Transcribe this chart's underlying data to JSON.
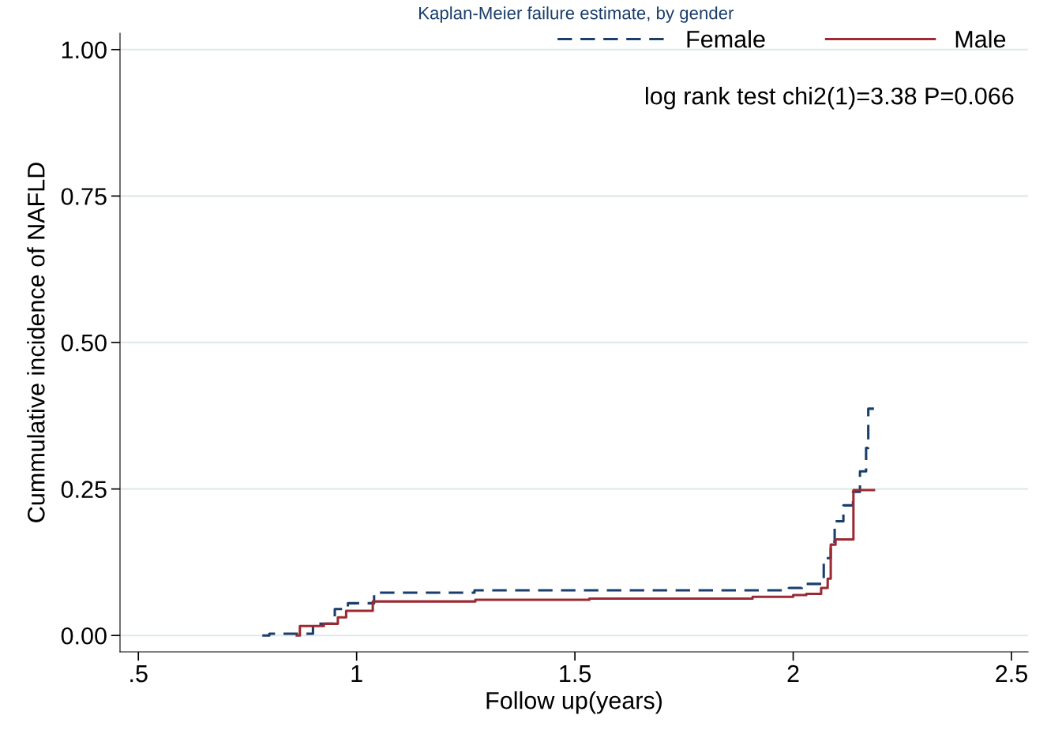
{
  "chart_data": {
    "type": "step",
    "title": "Kaplan-Meier failure estimate, by gender",
    "xlabel": "Follow up(years)",
    "ylabel": "Cummulative incidence of NAFLD",
    "annotations": [
      "log rank test chi2(1)=3.38 P=0.066"
    ],
    "series": [
      {
        "name": "Female",
        "color": "#1a3e6b",
        "line_style": "dashed",
        "x": [
          0.784,
          0.8,
          0.9,
          0.95,
          0.98,
          1.04,
          1.27,
          1.99,
          2.02,
          2.065,
          2.07,
          2.086,
          2.095,
          2.115,
          2.137,
          2.153,
          2.167,
          2.172,
          2.185
        ],
        "values": [
          0.0,
          0.003,
          0.02,
          0.045,
          0.055,
          0.073,
          0.077,
          0.081,
          0.088,
          0.097,
          0.132,
          0.16,
          0.195,
          0.222,
          0.245,
          0.28,
          0.32,
          0.387,
          0.387
        ]
      },
      {
        "name": "Male",
        "color": "#9b2a33",
        "line_style": "solid",
        "x": [
          0.863,
          0.87,
          0.925,
          0.957,
          0.976,
          1.037,
          1.272,
          1.533,
          1.907,
          2.0,
          2.03,
          2.064,
          2.079,
          2.086,
          2.097,
          2.138,
          2.185
        ],
        "values": [
          0.0,
          0.016,
          0.02,
          0.031,
          0.042,
          0.058,
          0.061,
          0.063,
          0.066,
          0.069,
          0.071,
          0.081,
          0.097,
          0.155,
          0.164,
          0.248,
          0.248
        ]
      }
    ],
    "xlim": [
      0.458,
      2.538
    ],
    "xticks": [
      {
        "value": 0.5,
        "label": ".5"
      },
      1,
      1.5,
      2,
      2.5
    ],
    "ylim": [
      -0.028,
      1.028
    ],
    "yticks": [
      {
        "value": 0,
        "label": "0.00"
      },
      {
        "value": 0.25,
        "label": "0.25"
      },
      {
        "value": 0.5,
        "label": "0.50"
      },
      {
        "value": 0.75,
        "label": "0.75"
      },
      {
        "value": 1,
        "label": "1.00"
      }
    ],
    "grid": "y",
    "legend": "top right"
  }
}
